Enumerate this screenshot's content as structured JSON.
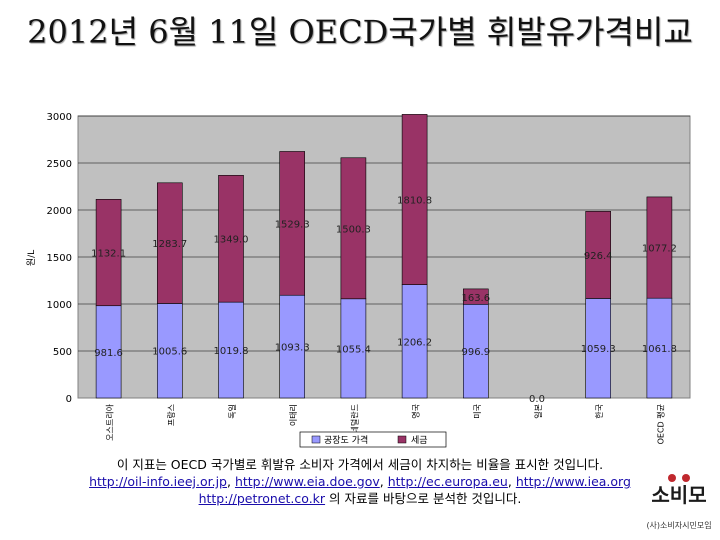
{
  "page": {
    "title": "2012년 6월 11일 OECD국가별 휘발유가격비교"
  },
  "caption": {
    "line1": "이 지표는 OECD 국가별로 휘발유 소비자 가격에서 세금이 차지하는 비율을 표시한 것입니다.",
    "links": [
      "http://oil-info.ieej.or.jp",
      "http://www.eia.doe.gov",
      "http://ec.europa.eu",
      "http://www.iea.org",
      "http://petronet.co.kr"
    ],
    "sep": ", ",
    "line3_suffix": " 의 자료를 바탕으로 분석한 것입니다."
  },
  "logo": {
    "mark_text": "소비모",
    "org_name": "(사)소비자시민모임"
  },
  "colors": {
    "factory_price": "#9999ff",
    "tax": "#993366",
    "plot_background": "#c0c0c0",
    "accent_red": "#c0282e"
  },
  "chart_data": {
    "type": "bar",
    "stacked": true,
    "ylabel": "원/L",
    "xlabel": "",
    "ylim": [
      0,
      3000
    ],
    "yticks": [
      0,
      500,
      1000,
      1500,
      2000,
      2500,
      3000
    ],
    "grid": true,
    "legend_position": "bottom",
    "categories": [
      "오스트리아",
      "프랑스",
      "독일",
      "이태리",
      "네덜란드",
      "영국",
      "미국",
      "일본",
      "한국",
      "OECD 평균"
    ],
    "series": [
      {
        "name": "공장도 가격",
        "values": [
          981.6,
          1005.6,
          1019.8,
          1093.3,
          1055.4,
          1206.2,
          996.9,
          0.0,
          1059.3,
          1061.8
        ]
      },
      {
        "name": "세금",
        "values": [
          1132.1,
          1283.7,
          1349.0,
          1529.3,
          1500.3,
          1810.8,
          163.6,
          0.0,
          926.4,
          1077.2
        ]
      }
    ],
    "data_labels": {
      "base": [
        "981.6",
        "1005.6",
        "1019.8",
        "1093.3",
        "1055.4",
        "1206.2",
        "996.9",
        "0.0",
        "1059.3",
        "1061.8"
      ],
      "tax": [
        "1132.1",
        "1283.7",
        "1349.0",
        "1529.3",
        "1500.3",
        "1810.8",
        "163.6",
        "",
        "926.4",
        "1077.2"
      ]
    }
  }
}
